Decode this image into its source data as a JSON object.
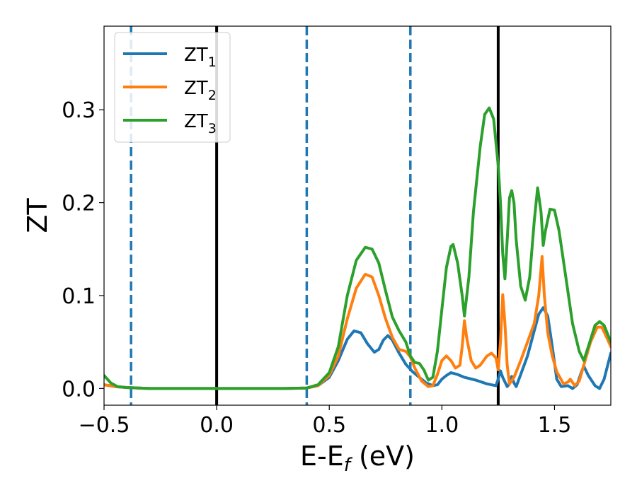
{
  "chart_data": {
    "type": "line",
    "xlabel": "E-E",
    "xlabel_sub": "f",
    "xlabel_unit": " (eV)",
    "ylabel": "ZT",
    "xlim": [
      -0.5,
      1.75
    ],
    "ylim": [
      -0.018,
      0.39
    ],
    "xticks": [
      -0.5,
      0.0,
      0.5,
      1.0,
      1.5
    ],
    "xtick_labels": [
      "−0.5",
      "0.0",
      "0.5",
      "1.0",
      "1.5"
    ],
    "yticks": [
      0.0,
      0.1,
      0.2,
      0.3
    ],
    "ytick_labels": [
      "0.0",
      "0.1",
      "0.2",
      "0.3"
    ],
    "grid": false,
    "legend_position": "upper-left",
    "vlines": [
      {
        "x": -0.38,
        "style": "dashed",
        "color": "#1f77b4"
      },
      {
        "x": 0.0,
        "style": "solid",
        "color": "#000000"
      },
      {
        "x": 0.4,
        "style": "dashed",
        "color": "#1f77b4"
      },
      {
        "x": 0.86,
        "style": "dashed",
        "color": "#1f77b4"
      },
      {
        "x": 1.25,
        "style": "solid",
        "color": "#000000"
      }
    ],
    "series": [
      {
        "name": "ZT",
        "name_sub": "1",
        "color": "#1f77b4",
        "points": [
          [
            -0.5,
            0.004
          ],
          [
            -0.45,
            0.002
          ],
          [
            -0.4,
            0.001
          ],
          [
            -0.3,
            0.0
          ],
          [
            0.0,
            0.0
          ],
          [
            0.3,
            0.0
          ],
          [
            0.4,
            0.0005
          ],
          [
            0.45,
            0.003
          ],
          [
            0.5,
            0.012
          ],
          [
            0.54,
            0.03
          ],
          [
            0.58,
            0.053
          ],
          [
            0.61,
            0.062
          ],
          [
            0.64,
            0.06
          ],
          [
            0.67,
            0.048
          ],
          [
            0.7,
            0.039
          ],
          [
            0.72,
            0.042
          ],
          [
            0.74,
            0.052
          ],
          [
            0.76,
            0.057
          ],
          [
            0.78,
            0.052
          ],
          [
            0.81,
            0.038
          ],
          [
            0.84,
            0.026
          ],
          [
            0.87,
            0.018
          ],
          [
            0.9,
            0.012
          ],
          [
            0.93,
            0.006
          ],
          [
            0.96,
            0.003
          ],
          [
            0.98,
            0.004
          ],
          [
            1.0,
            0.01
          ],
          [
            1.02,
            0.014
          ],
          [
            1.04,
            0.017
          ],
          [
            1.07,
            0.015
          ],
          [
            1.1,
            0.012
          ],
          [
            1.15,
            0.009
          ],
          [
            1.2,
            0.005
          ],
          [
            1.24,
            0.003
          ],
          [
            1.25,
            0.01
          ],
          [
            1.26,
            0.019
          ],
          [
            1.27,
            0.012
          ],
          [
            1.29,
            0.002
          ],
          [
            1.3,
            0.005
          ],
          [
            1.31,
            0.013
          ],
          [
            1.32,
            0.006
          ],
          [
            1.33,
            0.002
          ],
          [
            1.35,
            0.015
          ],
          [
            1.38,
            0.035
          ],
          [
            1.41,
            0.062
          ],
          [
            1.43,
            0.08
          ],
          [
            1.45,
            0.087
          ],
          [
            1.47,
            0.078
          ],
          [
            1.49,
            0.045
          ],
          [
            1.51,
            0.01
          ],
          [
            1.53,
            0.002
          ],
          [
            1.56,
            0.003
          ],
          [
            1.58,
            0.0
          ],
          [
            1.6,
            0.004
          ],
          [
            1.62,
            0.018
          ],
          [
            1.63,
            0.024
          ],
          [
            1.65,
            0.014
          ],
          [
            1.68,
            0.003
          ],
          [
            1.7,
            0.0
          ],
          [
            1.72,
            0.01
          ],
          [
            1.75,
            0.038
          ]
        ]
      },
      {
        "name": "ZT",
        "name_sub": "2",
        "color": "#ff7f0e",
        "points": [
          [
            -0.5,
            0.004
          ],
          [
            -0.45,
            0.002
          ],
          [
            -0.4,
            0.001
          ],
          [
            -0.3,
            0.0
          ],
          [
            0.0,
            0.0
          ],
          [
            0.3,
            0.0
          ],
          [
            0.4,
            0.0005
          ],
          [
            0.45,
            0.003
          ],
          [
            0.5,
            0.014
          ],
          [
            0.54,
            0.035
          ],
          [
            0.58,
            0.075
          ],
          [
            0.62,
            0.108
          ],
          [
            0.66,
            0.123
          ],
          [
            0.69,
            0.12
          ],
          [
            0.72,
            0.1
          ],
          [
            0.75,
            0.075
          ],
          [
            0.78,
            0.055
          ],
          [
            0.81,
            0.042
          ],
          [
            0.84,
            0.04
          ],
          [
            0.86,
            0.034
          ],
          [
            0.88,
            0.022
          ],
          [
            0.91,
            0.008
          ],
          [
            0.94,
            0.002
          ],
          [
            0.96,
            0.003
          ],
          [
            0.98,
            0.015
          ],
          [
            1.0,
            0.03
          ],
          [
            1.02,
            0.035
          ],
          [
            1.04,
            0.03
          ],
          [
            1.06,
            0.022
          ],
          [
            1.08,
            0.025
          ],
          [
            1.09,
            0.045
          ],
          [
            1.1,
            0.073
          ],
          [
            1.11,
            0.055
          ],
          [
            1.13,
            0.03
          ],
          [
            1.15,
            0.022
          ],
          [
            1.17,
            0.025
          ],
          [
            1.2,
            0.035
          ],
          [
            1.22,
            0.038
          ],
          [
            1.24,
            0.033
          ],
          [
            1.25,
            0.02
          ],
          [
            1.26,
            0.05
          ],
          [
            1.27,
            0.101
          ],
          [
            1.28,
            0.07
          ],
          [
            1.29,
            0.025
          ],
          [
            1.3,
            0.005
          ],
          [
            1.32,
            0.012
          ],
          [
            1.35,
            0.03
          ],
          [
            1.38,
            0.05
          ],
          [
            1.41,
            0.07
          ],
          [
            1.43,
            0.1
          ],
          [
            1.445,
            0.142
          ],
          [
            1.455,
            0.1
          ],
          [
            1.47,
            0.06
          ],
          [
            1.49,
            0.035
          ],
          [
            1.51,
            0.018
          ],
          [
            1.54,
            0.005
          ],
          [
            1.56,
            0.007
          ],
          [
            1.57,
            0.01
          ],
          [
            1.59,
            0.003
          ],
          [
            1.61,
            0.008
          ],
          [
            1.63,
            0.025
          ],
          [
            1.66,
            0.05
          ],
          [
            1.69,
            0.066
          ],
          [
            1.71,
            0.066
          ],
          [
            1.73,
            0.056
          ],
          [
            1.75,
            0.045
          ]
        ]
      },
      {
        "name": "ZT",
        "name_sub": "3",
        "color": "#2ca02c",
        "points": [
          [
            -0.5,
            0.014
          ],
          [
            -0.47,
            0.006
          ],
          [
            -0.44,
            0.002
          ],
          [
            -0.4,
            0.001
          ],
          [
            -0.3,
            0.0
          ],
          [
            0.0,
            0.0
          ],
          [
            0.3,
            0.0
          ],
          [
            0.4,
            0.0005
          ],
          [
            0.45,
            0.004
          ],
          [
            0.5,
            0.017
          ],
          [
            0.54,
            0.045
          ],
          [
            0.58,
            0.1
          ],
          [
            0.62,
            0.138
          ],
          [
            0.66,
            0.152
          ],
          [
            0.69,
            0.15
          ],
          [
            0.72,
            0.135
          ],
          [
            0.75,
            0.105
          ],
          [
            0.78,
            0.077
          ],
          [
            0.81,
            0.062
          ],
          [
            0.84,
            0.05
          ],
          [
            0.86,
            0.035
          ],
          [
            0.88,
            0.028
          ],
          [
            0.9,
            0.027
          ],
          [
            0.92,
            0.02
          ],
          [
            0.94,
            0.009
          ],
          [
            0.96,
            0.012
          ],
          [
            0.98,
            0.04
          ],
          [
            1.0,
            0.085
          ],
          [
            1.02,
            0.13
          ],
          [
            1.04,
            0.153
          ],
          [
            1.05,
            0.155
          ],
          [
            1.07,
            0.135
          ],
          [
            1.09,
            0.1
          ],
          [
            1.1,
            0.078
          ],
          [
            1.12,
            0.12
          ],
          [
            1.14,
            0.19
          ],
          [
            1.17,
            0.26
          ],
          [
            1.19,
            0.295
          ],
          [
            1.21,
            0.302
          ],
          [
            1.23,
            0.29
          ],
          [
            1.25,
            0.24
          ],
          [
            1.26,
            0.2
          ],
          [
            1.27,
            0.145
          ],
          [
            1.28,
            0.118
          ],
          [
            1.29,
            0.16
          ],
          [
            1.3,
            0.205
          ],
          [
            1.31,
            0.213
          ],
          [
            1.32,
            0.2
          ],
          [
            1.33,
            0.16
          ],
          [
            1.35,
            0.11
          ],
          [
            1.37,
            0.095
          ],
          [
            1.39,
            0.12
          ],
          [
            1.41,
            0.18
          ],
          [
            1.425,
            0.216
          ],
          [
            1.44,
            0.19
          ],
          [
            1.45,
            0.154
          ],
          [
            1.46,
            0.17
          ],
          [
            1.48,
            0.193
          ],
          [
            1.5,
            0.192
          ],
          [
            1.52,
            0.17
          ],
          [
            1.55,
            0.12
          ],
          [
            1.58,
            0.07
          ],
          [
            1.61,
            0.04
          ],
          [
            1.63,
            0.03
          ],
          [
            1.65,
            0.045
          ],
          [
            1.68,
            0.068
          ],
          [
            1.7,
            0.072
          ],
          [
            1.72,
            0.068
          ],
          [
            1.75,
            0.05
          ]
        ]
      }
    ]
  }
}
